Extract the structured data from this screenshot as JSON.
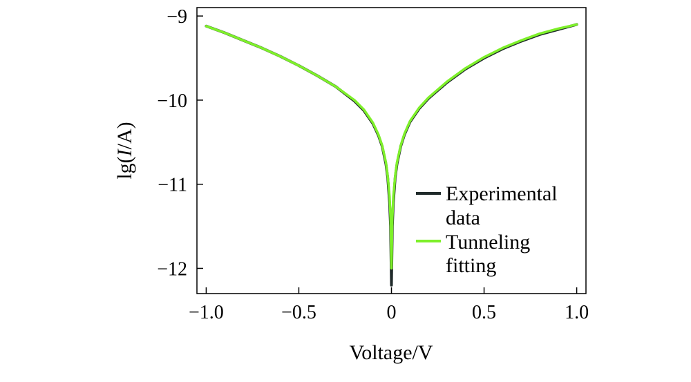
{
  "chart_data": {
    "type": "line",
    "xlabel": "Voltage/V",
    "ylabel_prefix": "lg(",
    "ylabel_italic": "I",
    "ylabel_suffix": "/A)",
    "xlim": [
      -1.05,
      1.05
    ],
    "ylim": [
      -12.3,
      -8.9
    ],
    "x_ticks": [
      -1.0,
      -0.5,
      0,
      0.5,
      1.0
    ],
    "x_tick_labels": [
      "−1.0",
      "−0.5",
      "0",
      "0.5",
      "1.0"
    ],
    "y_ticks": [
      -9,
      -10,
      -11,
      -12
    ],
    "y_tick_labels": [
      "−9",
      "−10",
      "−11",
      "−12"
    ],
    "grid": false,
    "legend_position": "right",
    "series": [
      {
        "name": "Experimental data",
        "color": "#1f2a2a",
        "x": [
          -1.0,
          -0.9,
          -0.8,
          -0.7,
          -0.6,
          -0.5,
          -0.4,
          -0.3,
          -0.2,
          -0.15,
          -0.1,
          -0.07,
          -0.05,
          -0.03,
          -0.02,
          -0.01,
          -0.005,
          0,
          0.005,
          0.01,
          0.02,
          0.03,
          0.05,
          0.07,
          0.1,
          0.15,
          0.2,
          0.3,
          0.4,
          0.5,
          0.6,
          0.7,
          0.8,
          0.9,
          1.0
        ],
        "y": [
          -9.12,
          -9.2,
          -9.29,
          -9.38,
          -9.48,
          -9.59,
          -9.71,
          -9.84,
          -10.01,
          -10.12,
          -10.28,
          -10.42,
          -10.55,
          -10.76,
          -10.92,
          -11.22,
          -11.5,
          -12.2,
          -11.5,
          -11.22,
          -10.92,
          -10.76,
          -10.55,
          -10.41,
          -10.26,
          -10.1,
          -9.98,
          -9.79,
          -9.63,
          -9.5,
          -9.39,
          -9.3,
          -9.22,
          -9.16,
          -9.1
        ]
      },
      {
        "name": "Tunneling fitting",
        "color": "#7ef02a",
        "x": [
          -1.0,
          -0.9,
          -0.8,
          -0.7,
          -0.6,
          -0.5,
          -0.4,
          -0.3,
          -0.2,
          -0.15,
          -0.1,
          -0.07,
          -0.05,
          -0.03,
          -0.02,
          -0.01,
          -0.005,
          0,
          0.005,
          0.01,
          0.02,
          0.03,
          0.05,
          0.07,
          0.1,
          0.15,
          0.2,
          0.3,
          0.4,
          0.5,
          0.6,
          0.7,
          0.8,
          0.9,
          1.0
        ],
        "y": [
          -9.12,
          -9.2,
          -9.29,
          -9.38,
          -9.48,
          -9.59,
          -9.71,
          -9.84,
          -10.0,
          -10.11,
          -10.27,
          -10.41,
          -10.54,
          -10.74,
          -10.9,
          -11.15,
          -11.4,
          -12.0,
          -11.4,
          -11.15,
          -10.9,
          -10.74,
          -10.54,
          -10.4,
          -10.25,
          -10.09,
          -9.97,
          -9.78,
          -9.62,
          -9.49,
          -9.38,
          -9.29,
          -9.21,
          -9.15,
          -9.1
        ]
      }
    ]
  }
}
